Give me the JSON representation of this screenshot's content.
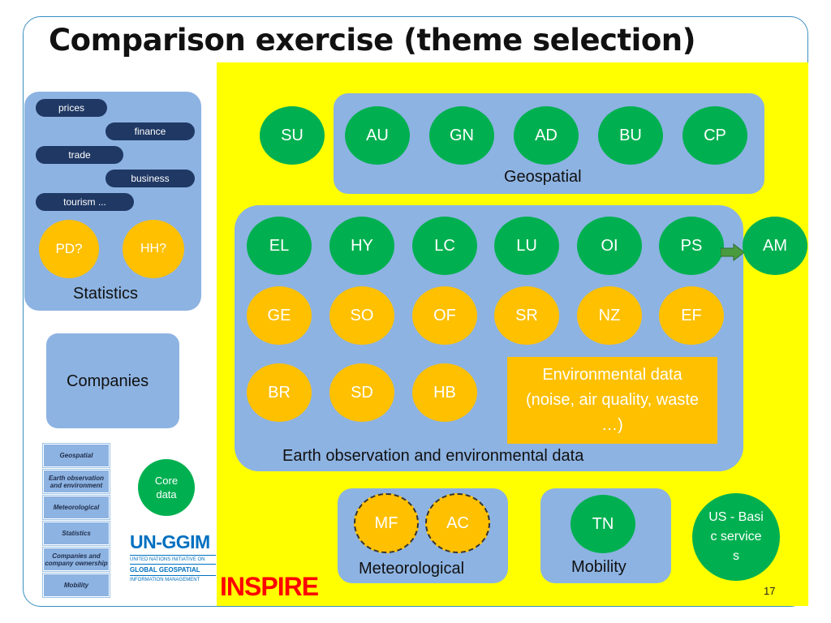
{
  "title": "Comparison exercise (theme selection)",
  "statistics": {
    "pills": [
      "prices",
      "finance",
      "trade",
      "business",
      "tourism ..."
    ],
    "circles": [
      "PD?",
      "HH?"
    ],
    "label": "Statistics"
  },
  "companies": {
    "label": "Companies"
  },
  "legend": {
    "items": [
      "Geospatial",
      "Earth observation and environment",
      "Meteorological",
      "Statistics",
      "Companies and company ownership",
      "Mobility"
    ]
  },
  "core_data": {
    "label": "Core data"
  },
  "ungg": {
    "name": "UN-GGIM",
    "line1": "UNITED NATIONS INITIATIVE ON",
    "line2": "GLOBAL GEOSPATIAL",
    "line3": "INFORMATION MANAGEMENT"
  },
  "inspire": "INSPIRE",
  "geospatial": {
    "outside": "SU",
    "circles": [
      "AU",
      "GN",
      "AD",
      "BU",
      "CP"
    ],
    "label": "Geospatial"
  },
  "earth": {
    "row1": [
      "EL",
      "HY",
      "LC",
      "LU",
      "OI",
      "PS"
    ],
    "row1_outside": "AM",
    "row2": [
      "GE",
      "SO",
      "OF",
      "SR",
      "NZ",
      "EF"
    ],
    "row3": [
      "BR",
      "SD",
      "HB"
    ],
    "env_data": "Environmental data (noise, air quality, waste …)",
    "label": "Earth observation and environmental data"
  },
  "meteorological": {
    "circles": [
      "MF",
      "AC"
    ],
    "label": "Meteorological"
  },
  "mobility": {
    "circle": "TN",
    "label": "Mobility"
  },
  "us_basic": "US - Basic services",
  "page_number": "17",
  "colors": {
    "green": "#00b050",
    "orange": "#ffc000",
    "yellow": "#ffff00",
    "box_blue": "#8db3e2",
    "pill_navy": "#1f3864",
    "inspire_red": "#ff0000",
    "ungg_blue": "#0070c0"
  }
}
